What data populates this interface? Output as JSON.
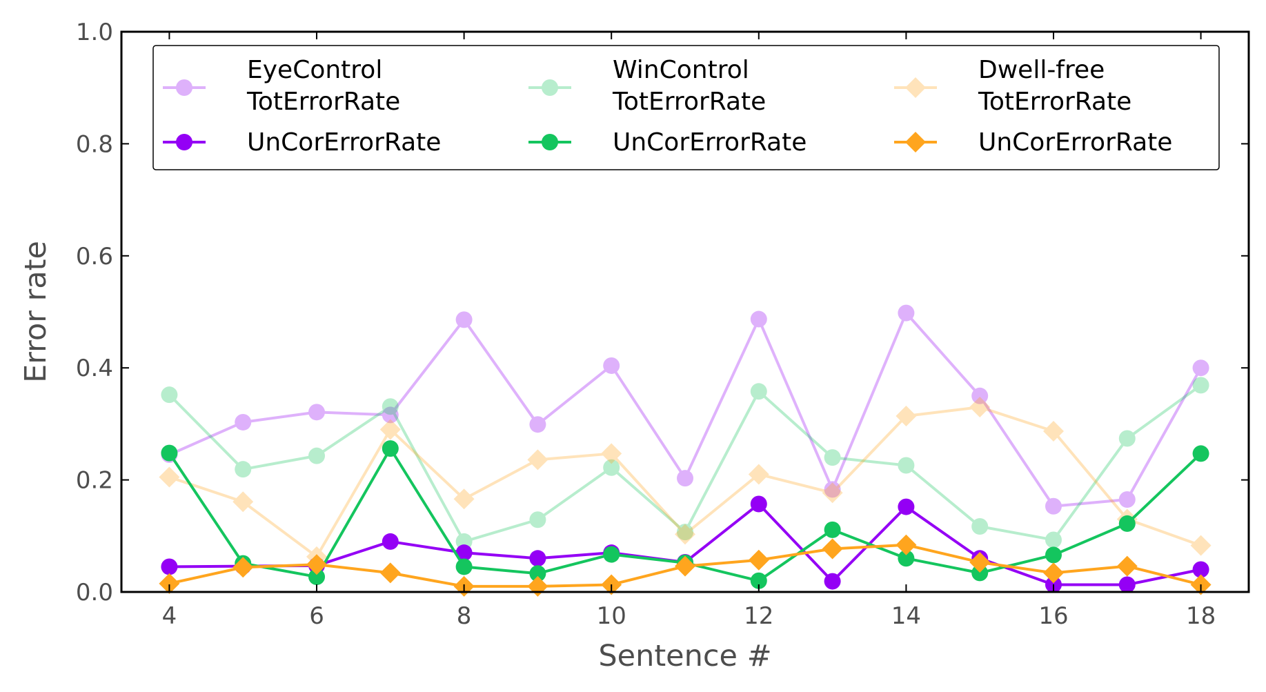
{
  "chart_data": {
    "type": "line",
    "xlabel": "Sentence #",
    "ylabel": "Error rate",
    "xlim": [
      3.35,
      18.65
    ],
    "ylim": [
      0.0,
      1.0
    ],
    "xticks": [
      4,
      6,
      8,
      10,
      12,
      14,
      16,
      18
    ],
    "xtick_labels": [
      "4",
      "6",
      "8",
      "10",
      "12",
      "14",
      "16",
      "18"
    ],
    "yticks": [
      0.0,
      0.2,
      0.4,
      0.6,
      0.8,
      1.0
    ],
    "ytick_labels": [
      "0.0",
      "0.2",
      "0.4",
      "0.6",
      "0.8",
      "1.0"
    ],
    "grid": false,
    "legend_position": "top",
    "x": [
      4,
      5,
      6,
      7,
      8,
      9,
      10,
      11,
      12,
      13,
      14,
      15,
      16,
      17,
      18
    ],
    "legend": [
      {
        "group": "EyeControl",
        "entries": [
          "TotErrorRate",
          "UnCorErrorRate"
        ]
      },
      {
        "group": "WinControl",
        "entries": [
          "TotErrorRate",
          "UnCorErrorRate"
        ]
      },
      {
        "group": "Dwell-free",
        "entries": [
          "TotErrorRate",
          "UnCorErrorRate"
        ]
      }
    ],
    "series": [
      {
        "group": "EyeControl",
        "name": "TotErrorRate",
        "color": "#9400f5",
        "marker": "circle",
        "faded": true,
        "values": [
          0.245,
          0.303,
          0.321,
          0.316,
          0.486,
          0.299,
          0.404,
          0.203,
          0.487,
          0.183,
          0.498,
          0.35,
          0.153,
          0.165,
          0.4
        ]
      },
      {
        "group": "WinControl",
        "name": "TotErrorRate",
        "color": "#14c55e",
        "marker": "circle",
        "faded": true,
        "values": [
          0.352,
          0.219,
          0.243,
          0.331,
          0.09,
          0.129,
          0.222,
          0.107,
          0.358,
          0.24,
          0.226,
          0.117,
          0.093,
          0.274,
          0.369
        ]
      },
      {
        "group": "Dwell-free",
        "name": "TotErrorRate",
        "color": "#ffa51e",
        "marker": "diamond",
        "faded": true,
        "values": [
          0.205,
          0.161,
          0.063,
          0.29,
          0.166,
          0.236,
          0.247,
          0.103,
          0.21,
          0.177,
          0.314,
          0.33,
          0.287,
          0.13,
          0.083
        ]
      },
      {
        "group": "EyeControl",
        "name": "UnCorErrorRate",
        "color": "#9400f5",
        "marker": "circle",
        "faded": false,
        "values": [
          0.045,
          0.046,
          0.047,
          0.09,
          0.07,
          0.06,
          0.07,
          0.053,
          0.157,
          0.019,
          0.152,
          0.06,
          0.013,
          0.013,
          0.04
        ]
      },
      {
        "group": "WinControl",
        "name": "UnCorErrorRate",
        "color": "#14c55e",
        "marker": "circle",
        "faded": false,
        "values": [
          0.248,
          0.051,
          0.027,
          0.256,
          0.045,
          0.033,
          0.067,
          0.052,
          0.02,
          0.111,
          0.06,
          0.034,
          0.066,
          0.122,
          0.247
        ]
      },
      {
        "group": "Dwell-free",
        "name": "UnCorErrorRate",
        "color": "#ffa51e",
        "marker": "diamond",
        "faded": false,
        "values": [
          0.015,
          0.044,
          0.049,
          0.034,
          0.01,
          0.01,
          0.013,
          0.046,
          0.057,
          0.077,
          0.084,
          0.053,
          0.034,
          0.046,
          0.013
        ]
      }
    ]
  }
}
